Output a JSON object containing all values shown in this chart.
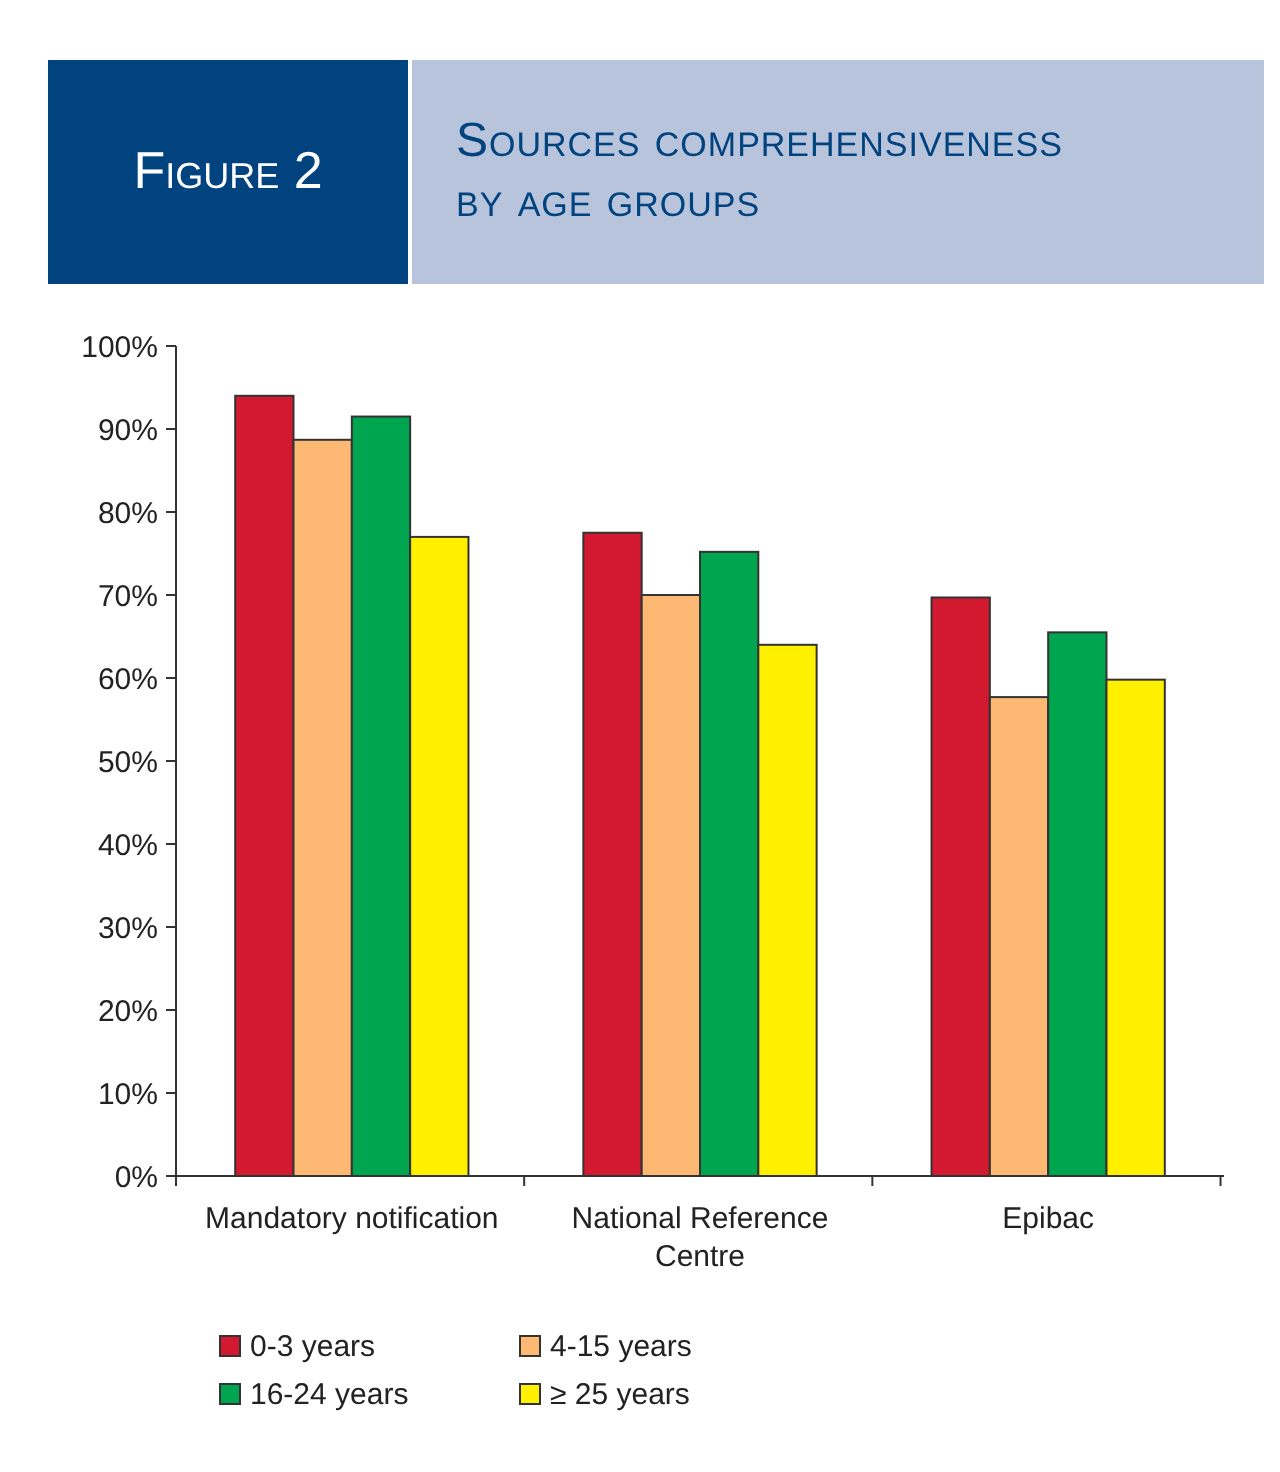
{
  "chart_data": {
    "type": "bar",
    "title": "Sources comprehensiveness by age groups",
    "subtitle": "Figure 2",
    "categories": [
      "Mandatory notification",
      "National Reference Centre",
      "Epibac"
    ],
    "series": [
      {
        "name": "0-3 years",
        "color": "#d2192f",
        "values": [
          94,
          77.5,
          69.7
        ]
      },
      {
        "name": "4-15 years",
        "color": "#fdb874",
        "values": [
          88.7,
          70,
          57.7
        ]
      },
      {
        "name": "16-24 years",
        "color": "#00a64f",
        "values": [
          91.5,
          75.2,
          65.5
        ]
      },
      {
        "name": "≥ 25 years",
        "color": "#fff000",
        "values": [
          77,
          64,
          59.8
        ]
      }
    ],
    "ylim": [
      0,
      100
    ],
    "yticks": [
      {
        "value": 0,
        "label": "0%"
      },
      {
        "value": 10,
        "label": "10%"
      },
      {
        "value": 20,
        "label": "20%"
      },
      {
        "value": 30,
        "label": "30%"
      },
      {
        "value": 40,
        "label": "40%"
      },
      {
        "value": 50,
        "label": "50%"
      },
      {
        "value": 60,
        "label": "60%"
      },
      {
        "value": 70,
        "label": "70%"
      },
      {
        "value": 80,
        "label": "80%"
      },
      {
        "value": 90,
        "label": "90%"
      },
      {
        "value": 100,
        "label": "100%"
      }
    ],
    "grid": false,
    "legend": "bottom left"
  }
}
